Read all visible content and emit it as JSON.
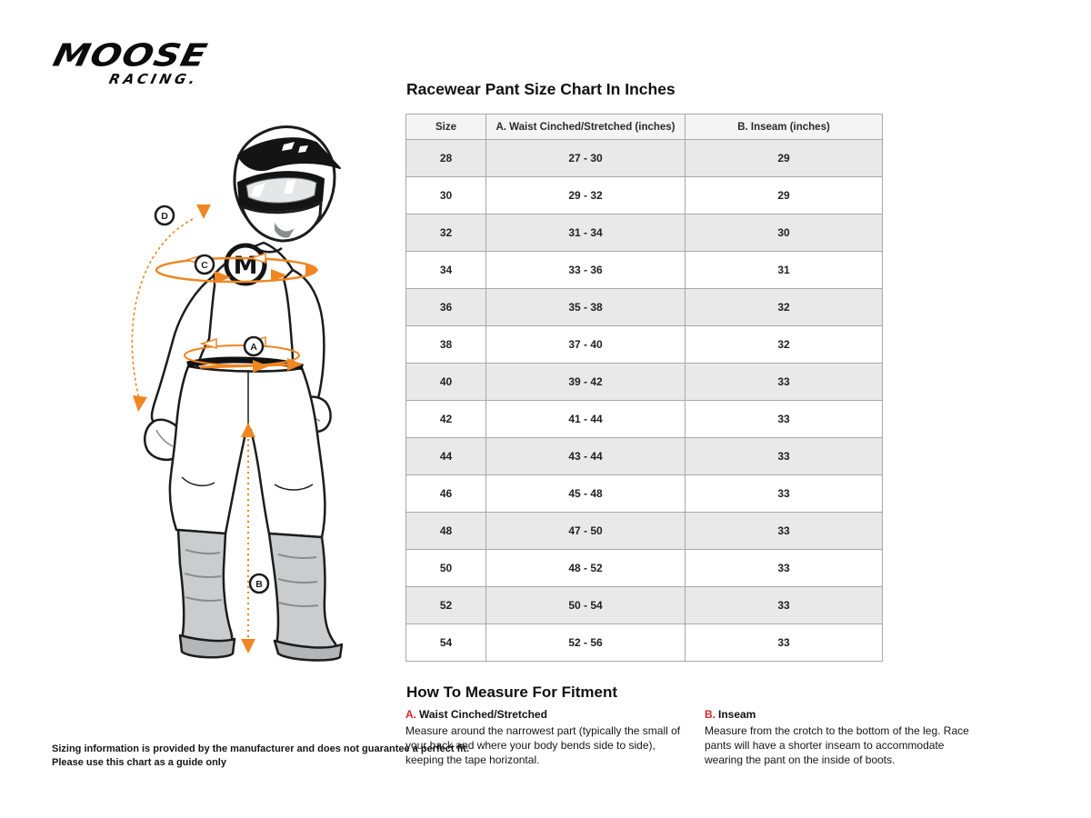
{
  "brand": {
    "name_top": "MOOSE",
    "name_bottom": "RACING."
  },
  "title": "Racewear Pant Size Chart In Inches",
  "table": {
    "columns": [
      "Size",
      "A. Waist Cinched/Stretched (inches)",
      "B. Inseam (inches)"
    ],
    "rows": [
      [
        "28",
        "27 - 30",
        "29"
      ],
      [
        "30",
        "29 - 32",
        "29"
      ],
      [
        "32",
        "31 - 34",
        "30"
      ],
      [
        "34",
        "33 - 36",
        "31"
      ],
      [
        "36",
        "35 - 38",
        "32"
      ],
      [
        "38",
        "37 - 40",
        "32"
      ],
      [
        "40",
        "39 - 42",
        "33"
      ],
      [
        "42",
        "41 - 44",
        "33"
      ],
      [
        "44",
        "43 - 44",
        "33"
      ],
      [
        "46",
        "45 - 48",
        "33"
      ],
      [
        "48",
        "47 - 50",
        "33"
      ],
      [
        "50",
        "48 - 52",
        "33"
      ],
      [
        "52",
        "50 - 54",
        "33"
      ],
      [
        "54",
        "52 - 56",
        "33"
      ]
    ]
  },
  "measure": {
    "heading": "How To Measure For Fitment",
    "items": [
      {
        "letter": "A.",
        "label": "Waist Cinched/Stretched",
        "text": "Measure around the narrowest part (typically the small of your back and where your body bends side to side), keeping the tape horizontal."
      },
      {
        "letter": "B.",
        "label": "Inseam",
        "text": "Measure from the crotch to the bottom of the leg. Race pants will have a shorter inseam to accommodate wearing the pant on the inside of boots."
      }
    ]
  },
  "disclaimer": {
    "line1": "Sizing information is provided by the manufacturer and does not guarantee a perfect fit.",
    "line2": "Please use this chart as a guide only"
  },
  "rider": {
    "labels": {
      "a": "A",
      "b": "B",
      "c": "C",
      "d": "D",
      "chest_m": "M"
    }
  },
  "colors": {
    "accent_orange": "#EF8621",
    "accent_red": "#D9252B",
    "table_alt_row": "#E9E9E9",
    "table_header_bg": "#F4F4F4",
    "table_border": "#A8A8A8"
  }
}
